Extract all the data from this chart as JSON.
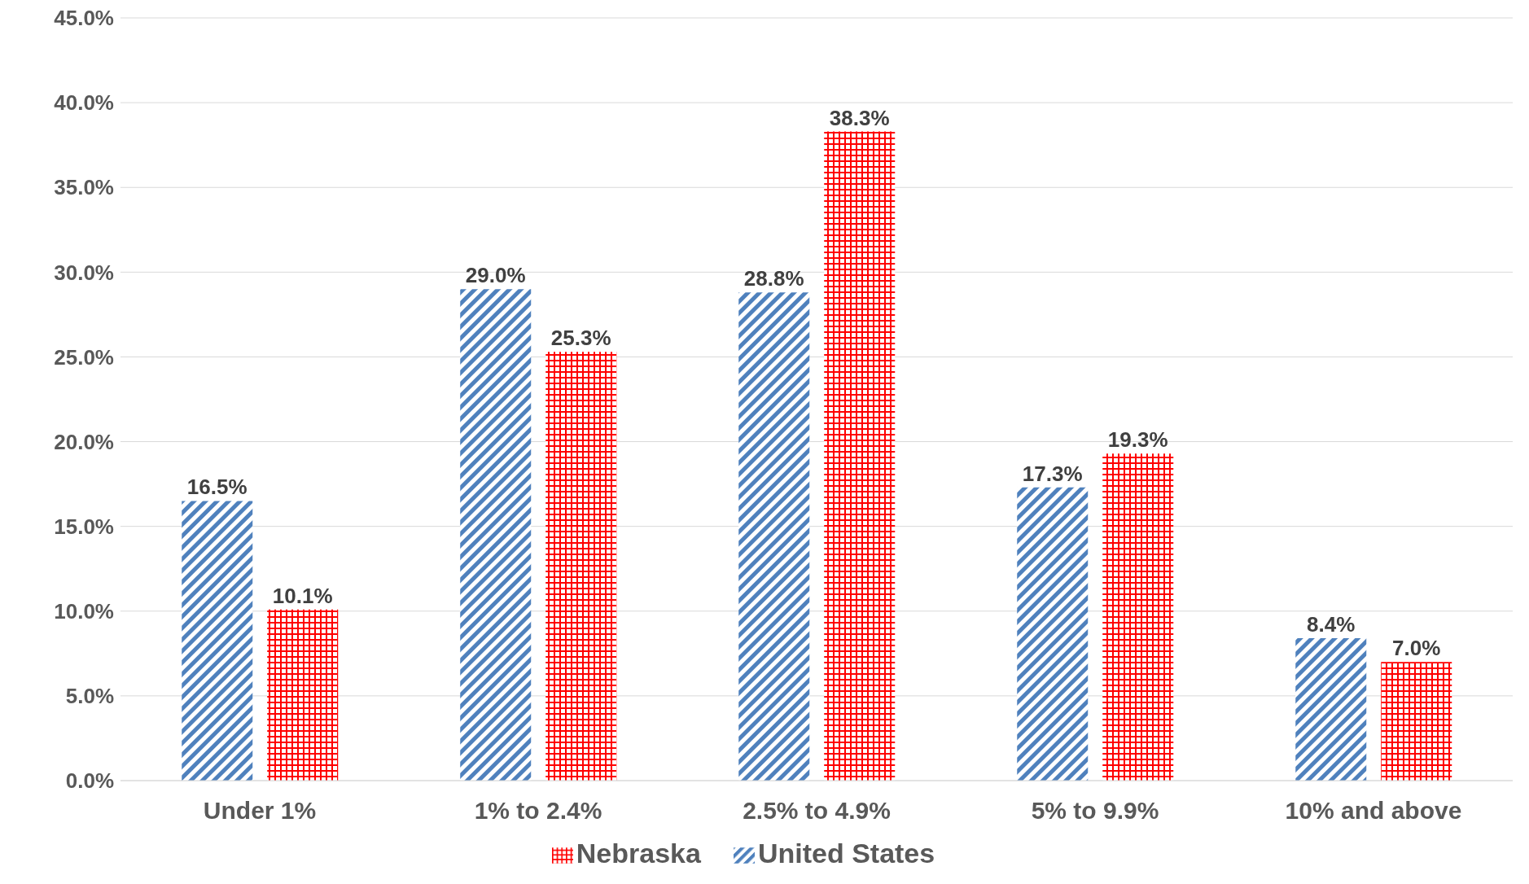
{
  "chart_data": {
    "type": "bar",
    "categories": [
      "Under 1%",
      "1% to 2.4%",
      "2.5% to 4.9%",
      "5% to 9.9%",
      "10% and above"
    ],
    "series": [
      {
        "name": "United States",
        "color": "#4f81bd",
        "values": [
          16.5,
          29.0,
          28.8,
          17.3,
          8.4
        ],
        "value_labels": [
          "16.5%",
          "29.0%",
          "28.8%",
          "17.3%",
          "8.4%"
        ]
      },
      {
        "name": "Nebraska",
        "color": "#ff0000",
        "values": [
          10.1,
          25.3,
          38.3,
          19.3,
          7.0
        ],
        "value_labels": [
          "10.1%",
          "25.3%",
          "38.3%",
          "19.3%",
          "7.0%"
        ]
      }
    ],
    "ylim": [
      0,
      45
    ],
    "yticks": [
      {
        "value": 0,
        "label": "0.0%"
      },
      {
        "value": 5,
        "label": "5.0%"
      },
      {
        "value": 10,
        "label": "10.0%"
      },
      {
        "value": 15,
        "label": "15.0%"
      },
      {
        "value": 20,
        "label": "20.0%"
      },
      {
        "value": 25,
        "label": "25.0%"
      },
      {
        "value": 30,
        "label": "30.0%"
      },
      {
        "value": 35,
        "label": "35.0%"
      },
      {
        "value": 40,
        "label": "40.0%"
      },
      {
        "value": 45,
        "label": "45.0%"
      }
    ],
    "grid": "y",
    "legend": "bottom"
  }
}
